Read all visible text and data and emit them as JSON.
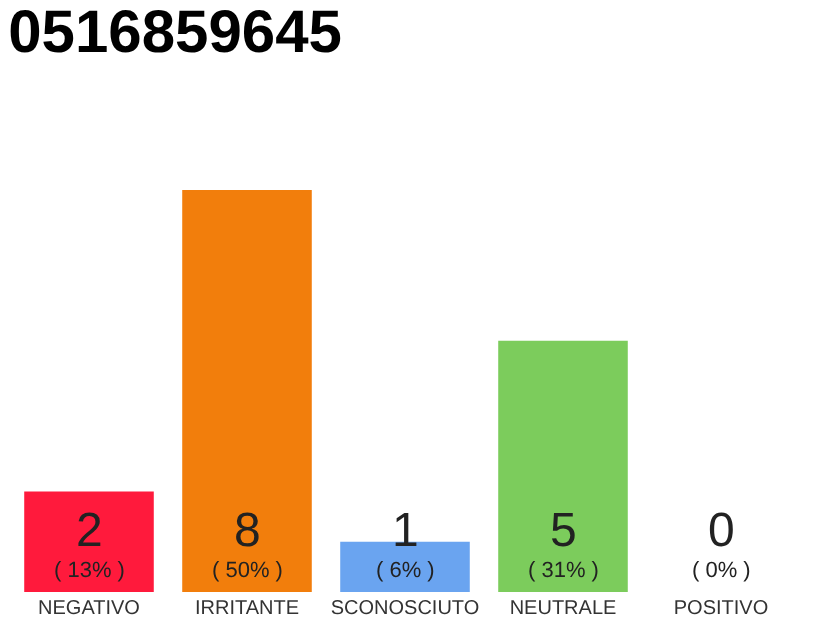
{
  "chart_data": {
    "type": "bar",
    "title": "0516859645",
    "categories": [
      "NEGATIVO",
      "IRRITANTE",
      "SCONOSCIUTO",
      "NEUTRALE",
      "POSITIVO"
    ],
    "values": [
      2,
      8,
      1,
      5,
      0
    ],
    "colors": [
      "#ff1a3c",
      "#f27e0c",
      "#6aa4f0",
      "#7ccc5c",
      "#cccccc"
    ],
    "value_labels": [
      "2\n( 13% )",
      "8\n( 50% )",
      "1\n( 6% )",
      "5\n( 31% )",
      "0\n( 0% )"
    ],
    "legend": false
  }
}
